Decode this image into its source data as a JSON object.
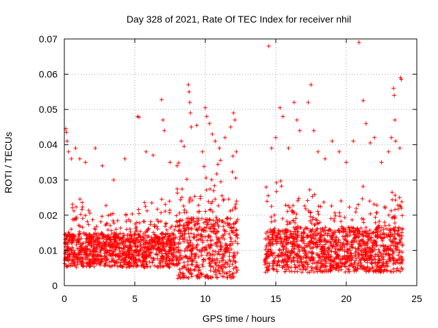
{
  "chart_data": {
    "type": "scatter",
    "title": "Day 328 of 2021, Rate Of TEC Index for receiver nhil",
    "xlabel": "GPS time / hours",
    "ylabel": "ROTI / TECUs",
    "xlim": [
      0,
      25
    ],
    "ylim": [
      0,
      0.07
    ],
    "x_ticks": [
      0,
      5,
      10,
      15,
      20,
      25
    ],
    "x_tick_labels": [
      "0",
      "5",
      "10",
      "15",
      "20",
      "25"
    ],
    "y_ticks": [
      0,
      0.01,
      0.02,
      0.03,
      0.04,
      0.05,
      0.06,
      0.07
    ],
    "y_tick_labels": [
      "0",
      "0.01",
      "0.02",
      "0.03",
      "0.04",
      "0.05",
      "0.06",
      "0.07"
    ],
    "grid": true,
    "marker": "+",
    "color": "#ff0000",
    "series": [
      {
        "name": "ROTI",
        "data_gap_hours": [
          12.3,
          14.2
        ],
        "points": [
          [
            0.1,
            0.0445
          ],
          [
            0.15,
            0.0435
          ],
          [
            0.2,
            0.041
          ],
          [
            0.3,
            0.038
          ],
          [
            0.5,
            0.036
          ],
          [
            0.8,
            0.039
          ],
          [
            1.1,
            0.036
          ],
          [
            1.5,
            0.035
          ],
          [
            2.2,
            0.039
          ],
          [
            2.7,
            0.034
          ],
          [
            3.5,
            0.03
          ],
          [
            4.3,
            0.036
          ],
          [
            5.2,
            0.048
          ],
          [
            5.3,
            0.0478
          ],
          [
            5.8,
            0.038
          ],
          [
            6.3,
            0.037
          ],
          [
            6.9,
            0.0528
          ],
          [
            7.0,
            0.047
          ],
          [
            7.1,
            0.044
          ],
          [
            7.5,
            0.035
          ],
          [
            8.0,
            0.034
          ],
          [
            8.3,
            0.041
          ],
          [
            8.5,
            0.0395
          ],
          [
            8.8,
            0.057
          ],
          [
            8.85,
            0.055
          ],
          [
            8.9,
            0.052
          ],
          [
            8.95,
            0.049
          ],
          [
            9.0,
            0.045
          ],
          [
            9.4,
            0.0455
          ],
          [
            9.8,
            0.038
          ],
          [
            10.0,
            0.0505
          ],
          [
            10.1,
            0.048
          ],
          [
            10.3,
            0.046
          ],
          [
            10.5,
            0.043
          ],
          [
            10.7,
            0.041
          ],
          [
            11.0,
            0.039
          ],
          [
            11.4,
            0.042
          ],
          [
            11.8,
            0.045
          ],
          [
            12.0,
            0.049
          ],
          [
            12.1,
            0.047
          ],
          [
            12.2,
            0.038
          ],
          [
            14.5,
            0.068
          ],
          [
            14.7,
            0.039
          ],
          [
            15.0,
            0.042
          ],
          [
            15.3,
            0.0505
          ],
          [
            15.5,
            0.048
          ],
          [
            15.9,
            0.039
          ],
          [
            16.3,
            0.052
          ],
          [
            16.5,
            0.047
          ],
          [
            16.7,
            0.044
          ],
          [
            17.3,
            0.052
          ],
          [
            17.5,
            0.057
          ],
          [
            17.7,
            0.044
          ],
          [
            18.0,
            0.038
          ],
          [
            18.5,
            0.036
          ],
          [
            19.0,
            0.041
          ],
          [
            19.5,
            0.038
          ],
          [
            20.0,
            0.035
          ],
          [
            20.5,
            0.041
          ],
          [
            20.9,
            0.069
          ],
          [
            21.2,
            0.0525
          ],
          [
            21.4,
            0.046
          ],
          [
            21.7,
            0.0405
          ],
          [
            22.0,
            0.042
          ],
          [
            22.5,
            0.035
          ],
          [
            23.0,
            0.038
          ],
          [
            23.2,
            0.042
          ],
          [
            23.35,
            0.056
          ],
          [
            23.4,
            0.054
          ],
          [
            23.45,
            0.047
          ],
          [
            23.5,
            0.041
          ],
          [
            23.8,
            0.039
          ],
          [
            23.85,
            0.059
          ],
          [
            23.9,
            0.0585
          ]
        ]
      }
    ]
  }
}
